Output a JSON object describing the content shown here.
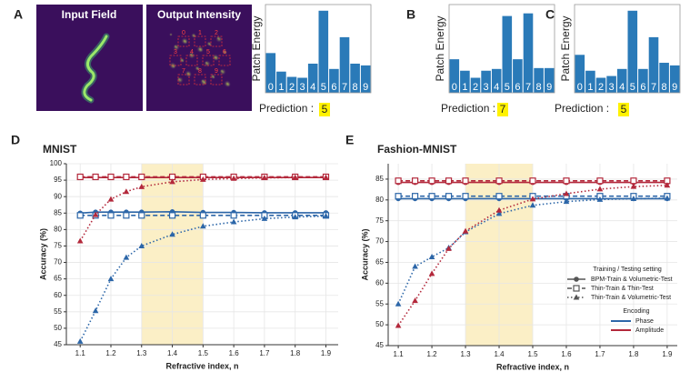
{
  "panel_labels": [
    "A",
    "B",
    "C",
    "D",
    "E"
  ],
  "images": [
    "Input Field",
    "Output Intensity"
  ],
  "legend": {
    "setting_title": "Training / Testing setting",
    "settings": [
      {
        "name": "BPM-Train & Volumetric-Test",
        "dash": "solid",
        "marker": "circle"
      },
      {
        "name": "Thin-Train & Thin-Test",
        "dash": "dashed",
        "marker": "square"
      },
      {
        "name": "Thin-Train & Volumetric-Test",
        "dash": "dotted",
        "marker": "triangle"
      }
    ],
    "encoding_title": "Encoding",
    "encodings": [
      {
        "name": "Phase",
        "color": "#2c66a8"
      },
      {
        "name": "Amplitude",
        "color": "#b3283b"
      }
    ]
  },
  "chart_data": [
    {
      "type": "bar",
      "ylabel": "Patch Energy",
      "categories": [
        "0",
        "1",
        "2",
        "3",
        "4",
        "5",
        "6",
        "7",
        "8",
        "9"
      ],
      "values": [
        0.45,
        0.24,
        0.18,
        0.17,
        0.33,
        0.93,
        0.27,
        0.63,
        0.33,
        0.31
      ],
      "ylim": [
        0,
        1
      ],
      "color": "#2a7ab8",
      "annotation": "Prediction :",
      "prediction": "5",
      "highlight": "#fff200"
    },
    {
      "type": "bar",
      "ylabel": "Patch Energy",
      "categories": [
        "0",
        "1",
        "2",
        "3",
        "4",
        "5",
        "6",
        "7",
        "8",
        "9"
      ],
      "values": [
        0.38,
        0.25,
        0.17,
        0.25,
        0.27,
        0.87,
        0.38,
        0.9,
        0.28,
        0.28
      ],
      "ylim": [
        0,
        1
      ],
      "color": "#2a7ab8",
      "annotation": "Prediction :",
      "prediction": "7",
      "highlight": "#fff200"
    },
    {
      "type": "bar",
      "ylabel": "Patch Energy",
      "categories": [
        "0",
        "1",
        "2",
        "3",
        "4",
        "5",
        "6",
        "7",
        "8",
        "9"
      ],
      "values": [
        0.43,
        0.25,
        0.17,
        0.19,
        0.27,
        0.93,
        0.27,
        0.63,
        0.34,
        0.31
      ],
      "ylim": [
        0,
        1
      ],
      "color": "#2a7ab8",
      "annotation": "Prediction :",
      "prediction": "5",
      "highlight": "#fff200"
    },
    {
      "type": "line",
      "title": "MNIST",
      "xlabel": "Refractive index, n",
      "ylabel": "Accuracy (%)",
      "x": [
        1.1,
        1.15,
        1.2,
        1.25,
        1.3,
        1.4,
        1.5,
        1.6,
        1.7,
        1.8,
        1.9
      ],
      "series": [
        [
          [
            85.0,
            85.3,
            85.3,
            85.3,
            85.3,
            85.4,
            85.2,
            85.2,
            85.1,
            85.1,
            85.1
          ],
          [
            84.3,
            84.3,
            84.3,
            84.3,
            84.3,
            84.3,
            84.3,
            84.3,
            84.3,
            84.3,
            84.3
          ],
          [
            46,
            55.3,
            65,
            71.5,
            75,
            78.5,
            81,
            82.3,
            83.3,
            83.8,
            84.1
          ]
        ],
        [
          [
            95.8,
            95.8,
            95.8,
            95.8,
            95.8,
            95.8,
            95.8,
            95.8,
            95.8,
            95.8,
            95.8
          ],
          [
            96,
            96,
            96,
            96,
            96,
            96,
            96,
            96,
            96,
            96,
            96
          ],
          [
            76.5,
            84.5,
            89.2,
            91.5,
            93,
            94.5,
            95.2,
            95.5,
            95.7,
            95.8,
            95.8
          ]
        ]
      ],
      "xlim": [
        1.055,
        1.94
      ],
      "xticks": [
        1.1,
        1.2,
        1.3,
        1.4,
        1.5,
        1.6,
        1.7,
        1.8,
        1.9
      ],
      "ylim": [
        45,
        100
      ],
      "yticks": [
        45,
        50,
        55,
        60,
        65,
        70,
        75,
        80,
        85,
        90,
        95,
        100
      ],
      "grid": true,
      "shaded": [
        1.3,
        1.5
      ],
      "shade_color": "#fbefc6"
    },
    {
      "type": "line",
      "title": "Fashion-MNIST",
      "xlabel": "Refractive index, n",
      "ylabel": "Accuracy (%)",
      "x": [
        1.1,
        1.15,
        1.2,
        1.25,
        1.3,
        1.4,
        1.5,
        1.6,
        1.7,
        1.8,
        1.9
      ],
      "series": [
        [
          [
            80.3,
            80.3,
            80.3,
            80.3,
            80.3,
            80.3,
            80.3,
            80.3,
            80.3,
            80.3,
            80.3
          ],
          [
            80.9,
            80.9,
            80.9,
            80.9,
            80.9,
            80.9,
            80.9,
            80.9,
            80.9,
            80.9,
            80.9
          ],
          [
            55,
            64,
            66.3,
            68.5,
            72.3,
            76.7,
            78.7,
            79.6,
            80.1,
            80.3,
            80.4
          ]
        ],
        [
          [
            84.2,
            84.2,
            84.2,
            84.2,
            84.2,
            84.2,
            84.2,
            84.2,
            84.2,
            84.2,
            84.2
          ],
          [
            84.6,
            84.6,
            84.6,
            84.6,
            84.6,
            84.6,
            84.6,
            84.6,
            84.6,
            84.6,
            84.6
          ],
          [
            49.8,
            55.8,
            62.3,
            68.3,
            72.5,
            77.5,
            80.2,
            81.5,
            82.6,
            83.2,
            83.5
          ]
        ]
      ],
      "xlim": [
        1.07,
        1.93
      ],
      "xticks": [
        1.1,
        1.2,
        1.3,
        1.4,
        1.5,
        1.6,
        1.7,
        1.8,
        1.9
      ],
      "ylim": [
        45,
        88.7
      ],
      "yticks": [
        45,
        50,
        55,
        60,
        65,
        70,
        75,
        80,
        85
      ],
      "grid": true,
      "shaded": [
        1.3,
        1.5
      ],
      "shade_color": "#fbefc6"
    }
  ]
}
